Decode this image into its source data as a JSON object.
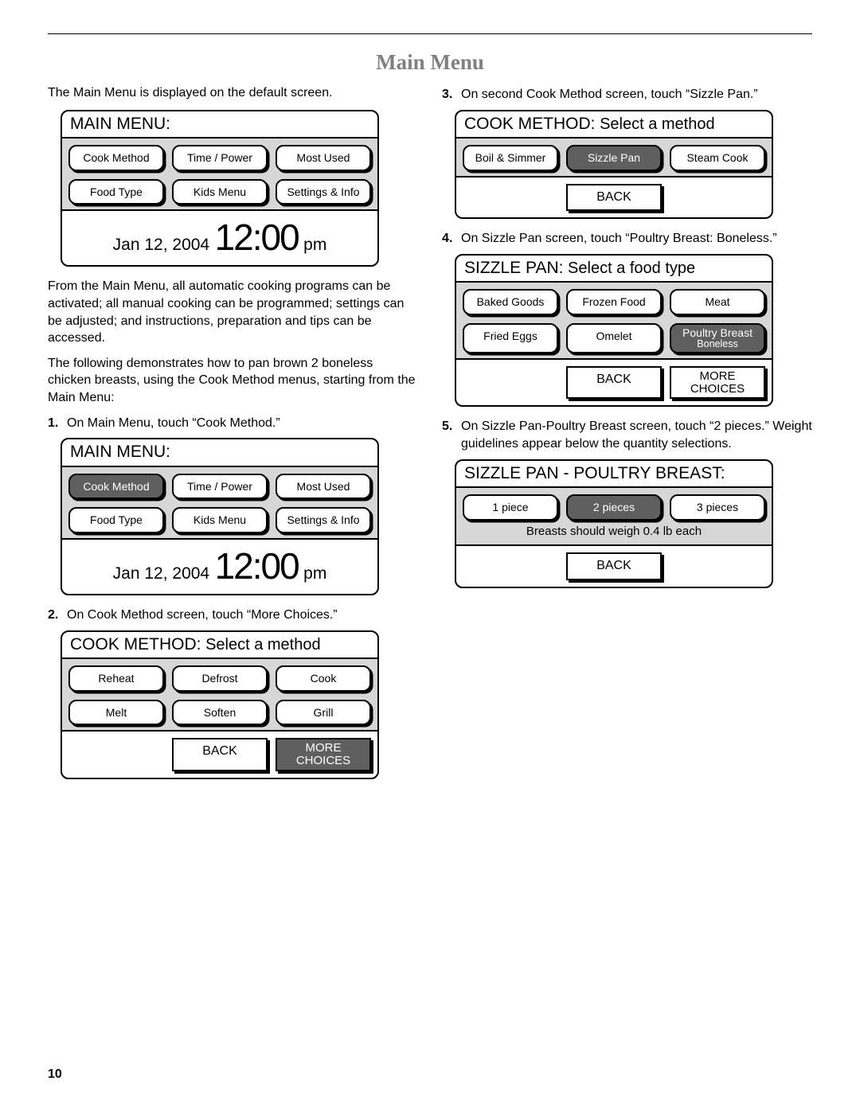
{
  "title": "Main Menu",
  "pageNumber": "10",
  "nav": {
    "back": "BACK",
    "more1": "MORE",
    "more2": "CHOICES"
  },
  "left": {
    "intro1": "The Main Menu is displayed on the default screen.",
    "intro2": "From the Main Menu, all automatic cooking programs can be activated; all manual cooking can be programmed; settings can be adjusted; and instructions, preparation and tips can be accessed.",
    "intro3": "The following demonstrates how to pan brown 2 boneless chicken breasts, using the Cook Method menus, starting from the Main Menu:",
    "steps": [
      {
        "n": "1.",
        "t": "On Main Menu, touch “Cook Method.”"
      },
      {
        "n": "2.",
        "t": "On Cook Method screen, touch “More Choices.”"
      }
    ]
  },
  "right": {
    "steps": [
      {
        "n": "3.",
        "t": "On second Cook Method screen, touch “Sizzle Pan.”"
      },
      {
        "n": "4.",
        "t": "On Sizzle Pan screen, touch “Poultry Breast: Boneless.”"
      },
      {
        "n": "5.",
        "t": "On Sizzle Pan-Poultry Breast screen, touch “2 pieces.” Weight guidelines appear below the quantity selections."
      }
    ]
  },
  "screens": {
    "mainMenu": {
      "title": "MAIN MENU:",
      "buttons": [
        "Cook Method",
        "Time / Power",
        "Most Used",
        "Food Type",
        "Kids Menu",
        "Settings & Info"
      ],
      "date": "Jan 12, 2004",
      "time": "12:00",
      "ampm": "pm"
    },
    "cookMethod1": {
      "titleStrong": "COOK METHOD:",
      "titleRest": " Select a method",
      "buttons": [
        "Reheat",
        "Defrost",
        "Cook",
        "Melt",
        "Soften",
        "Grill"
      ]
    },
    "cookMethod2": {
      "buttons": [
        "Boil & Simmer",
        "Sizzle Pan",
        "Steam Cook"
      ]
    },
    "sizzlePan": {
      "titleStrong": "SIZZLE PAN:",
      "titleRest": " Select a food type",
      "buttons": [
        "Baked Goods",
        "Frozen Food",
        "Meat",
        "Fried Eggs",
        "Omelet"
      ],
      "poultry1": "Poultry Breast",
      "poultry2": "Boneless"
    },
    "poultry": {
      "title": "SIZZLE PAN - POULTRY BREAST:",
      "buttons": [
        "1 piece",
        "2 pieces",
        "3 pieces"
      ],
      "note": "Breasts should weigh 0.4 lb each"
    }
  }
}
